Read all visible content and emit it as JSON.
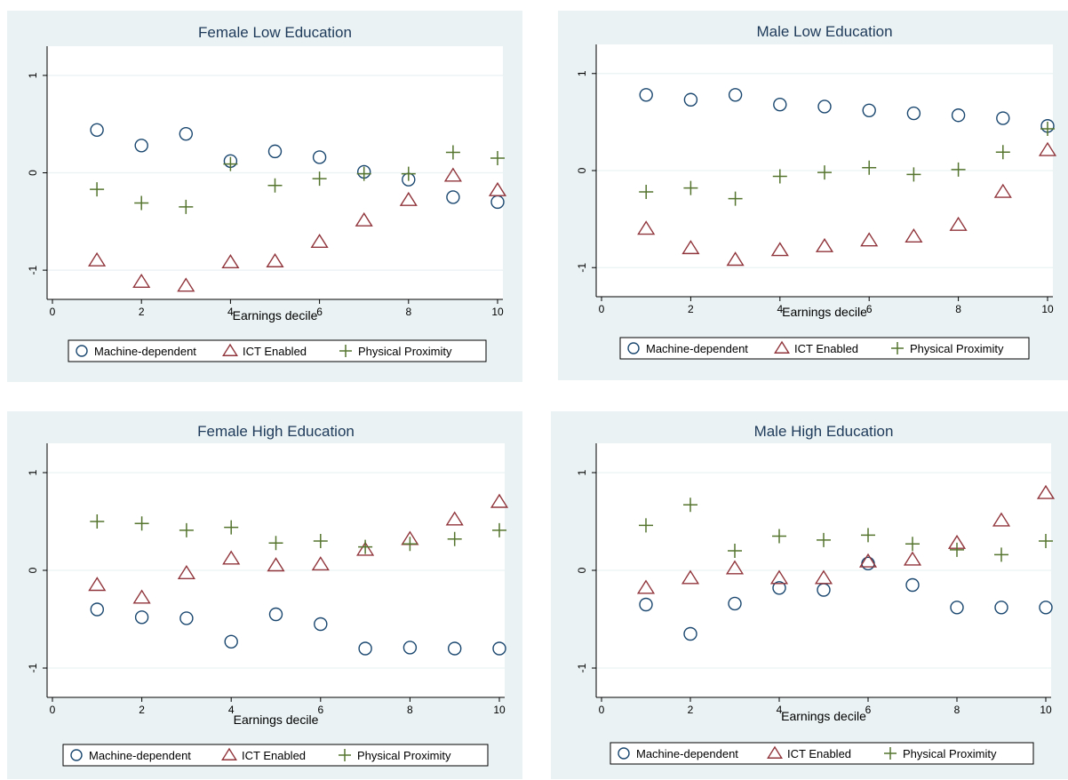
{
  "colors": {
    "machine": "#1a476f",
    "ict": "#90353b",
    "physical": "#55752f",
    "panel_bg": "#eaf2f3",
    "title": "#1e3a5a",
    "grid": "#eaf2f3"
  },
  "legend": [
    "Machine-dependent",
    "ICT Enabled",
    "Physical Proximity"
  ],
  "chart_data": [
    {
      "type": "scatter",
      "title": "Female Low Education",
      "xlabel": "Earnings decile",
      "ylabel": "",
      "xlim": [
        0,
        10
      ],
      "ylim": [
        -1.3,
        1.3
      ],
      "xticks": [
        "0",
        "2",
        "4",
        "6",
        "8",
        "10"
      ],
      "yticks": [
        "-1",
        "0",
        "1"
      ],
      "x": [
        1,
        2,
        3,
        4,
        5,
        6,
        7,
        8,
        9,
        10
      ],
      "series": [
        {
          "name": "Machine-dependent",
          "marker": "circle",
          "values": [
            0.44,
            0.28,
            0.4,
            0.12,
            0.22,
            0.16,
            0.01,
            -0.07,
            -0.25,
            -0.3
          ]
        },
        {
          "name": "ICT Enabled",
          "marker": "triangle",
          "values": [
            -0.9,
            -1.12,
            -1.16,
            -0.92,
            -0.91,
            -0.71,
            -0.49,
            -0.28,
            -0.03,
            -0.18
          ]
        },
        {
          "name": "Physical Proximity",
          "marker": "plus",
          "values": [
            -0.17,
            -0.31,
            -0.35,
            0.09,
            -0.13,
            -0.06,
            -0.01,
            -0.01,
            0.21,
            0.15
          ]
        }
      ]
    },
    {
      "type": "scatter",
      "title": "Male Low Education",
      "xlabel": "Earnings decile",
      "ylabel": "",
      "xlim": [
        0,
        10
      ],
      "ylim": [
        -1.3,
        1.3
      ],
      "xticks": [
        "0",
        "2",
        "4",
        "6",
        "8",
        "10"
      ],
      "yticks": [
        "-1",
        "0",
        "1"
      ],
      "x": [
        1,
        2,
        3,
        4,
        5,
        6,
        7,
        8,
        9,
        10
      ],
      "series": [
        {
          "name": "Machine-dependent",
          "marker": "circle",
          "values": [
            0.78,
            0.73,
            0.78,
            0.68,
            0.66,
            0.62,
            0.59,
            0.57,
            0.54,
            0.46
          ]
        },
        {
          "name": "ICT Enabled",
          "marker": "triangle",
          "values": [
            -0.6,
            -0.8,
            -0.92,
            -0.82,
            -0.78,
            -0.72,
            -0.68,
            -0.56,
            -0.22,
            0.21
          ]
        },
        {
          "name": "Physical Proximity",
          "marker": "plus",
          "values": [
            -0.22,
            -0.18,
            -0.29,
            -0.06,
            -0.02,
            0.03,
            -0.04,
            0.01,
            0.19,
            0.43
          ]
        }
      ]
    },
    {
      "type": "scatter",
      "title": "Female High Education",
      "xlabel": "Earnings decile",
      "ylabel": "",
      "xlim": [
        0,
        10
      ],
      "ylim": [
        -1.3,
        1.3
      ],
      "xticks": [
        "0",
        "2",
        "4",
        "6",
        "8",
        "10"
      ],
      "yticks": [
        "-1",
        "0",
        "1"
      ],
      "x": [
        1,
        2,
        3,
        4,
        5,
        6,
        7,
        8,
        9,
        10
      ],
      "series": [
        {
          "name": "Machine-dependent",
          "marker": "circle",
          "values": [
            -0.4,
            -0.48,
            -0.49,
            -0.73,
            -0.45,
            -0.55,
            -0.8,
            -0.79,
            -0.8,
            -0.8
          ]
        },
        {
          "name": "ICT Enabled",
          "marker": "triangle",
          "values": [
            -0.15,
            -0.28,
            -0.03,
            0.12,
            0.05,
            0.06,
            0.21,
            0.32,
            0.52,
            0.7
          ]
        },
        {
          "name": "Physical Proximity",
          "marker": "plus",
          "values": [
            0.5,
            0.48,
            0.41,
            0.44,
            0.28,
            0.3,
            0.24,
            0.27,
            0.32,
            0.41
          ]
        }
      ]
    },
    {
      "type": "scatter",
      "title": "Male High Education",
      "xlabel": "Earnings decile",
      "ylabel": "",
      "xlim": [
        0,
        10
      ],
      "ylim": [
        -1.3,
        1.3
      ],
      "xticks": [
        "0",
        "2",
        "4",
        "6",
        "8",
        "10"
      ],
      "yticks": [
        "-1",
        "0",
        "1"
      ],
      "x": [
        1,
        2,
        3,
        4,
        5,
        6,
        7,
        8,
        9,
        10
      ],
      "series": [
        {
          "name": "Machine-dependent",
          "marker": "circle",
          "values": [
            -0.35,
            -0.65,
            -0.34,
            -0.18,
            -0.2,
            0.07,
            -0.15,
            -0.38,
            -0.38,
            -0.38
          ]
        },
        {
          "name": "ICT Enabled",
          "marker": "triangle",
          "values": [
            -0.18,
            -0.08,
            0.02,
            -0.08,
            -0.08,
            0.09,
            0.11,
            0.28,
            0.51,
            0.79
          ]
        },
        {
          "name": "Physical Proximity",
          "marker": "plus",
          "values": [
            0.46,
            0.67,
            0.2,
            0.35,
            0.31,
            0.36,
            0.27,
            0.21,
            0.16,
            0.3
          ]
        }
      ]
    }
  ]
}
